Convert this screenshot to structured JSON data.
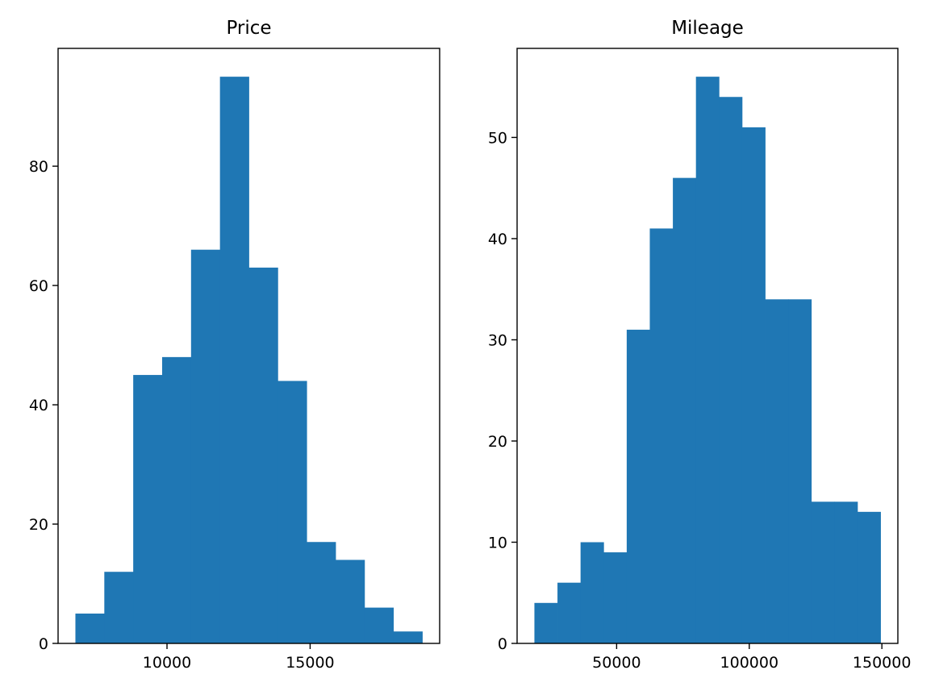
{
  "chart_data": [
    {
      "type": "bar",
      "title": "Price",
      "xlabel": "",
      "ylabel": "",
      "color": "#1f77b4",
      "bin_edges": [
        6800,
        7810,
        8820,
        9830,
        10840,
        11850,
        12860,
        13870,
        14880,
        15890,
        16900,
        17910,
        18920
      ],
      "values": [
        5,
        12,
        45,
        48,
        66,
        95,
        63,
        44,
        17,
        14,
        6,
        2
      ],
      "xlim": [
        6195,
        19525
      ],
      "ylim": [
        0,
        99.75
      ],
      "xticks": [
        10000,
        15000
      ],
      "xtick_labels": [
        "10000",
        "15000"
      ],
      "yticks": [
        0,
        20,
        40,
        60,
        80
      ],
      "ytick_labels": [
        "0",
        "20",
        "40",
        "60",
        "80"
      ],
      "grid": false,
      "legend": "none"
    },
    {
      "type": "bar",
      "title": "Mileage",
      "xlabel": "",
      "ylabel": "",
      "color": "#1f77b4",
      "bin_edges": [
        19000,
        27700,
        36400,
        45100,
        53800,
        62500,
        71200,
        79900,
        88600,
        97300,
        106000,
        114700,
        123400,
        132100,
        140800,
        149500
      ],
      "values": [
        4,
        6,
        10,
        9,
        31,
        41,
        46,
        56,
        54,
        51,
        34,
        34,
        14,
        14,
        13
      ],
      "xlim": [
        12475,
        156025
      ],
      "ylim": [
        0,
        58.8
      ],
      "xticks": [
        50000,
        100000,
        150000
      ],
      "xtick_labels": [
        "50000",
        "100000",
        "150000"
      ],
      "yticks": [
        0,
        10,
        20,
        30,
        40,
        50
      ],
      "ytick_labels": [
        "0",
        "10",
        "20",
        "30",
        "40",
        "50"
      ],
      "grid": false,
      "legend": "none"
    }
  ]
}
